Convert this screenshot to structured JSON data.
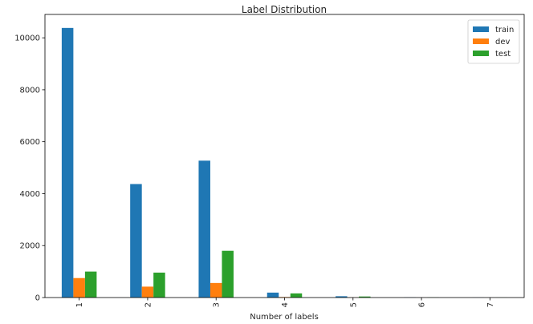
{
  "chart_data": {
    "type": "bar",
    "title": "Label Distribution",
    "xlabel": "Number of labels",
    "ylabel": "",
    "categories": [
      "1",
      "2",
      "3",
      "4",
      "5",
      "6",
      "7"
    ],
    "series": [
      {
        "name": "train",
        "color": "#1f77b4",
        "values": [
          10380,
          4370,
          5270,
          190,
          50,
          8,
          3
        ]
      },
      {
        "name": "dev",
        "color": "#ff7f0e",
        "values": [
          750,
          420,
          560,
          20,
          5,
          1,
          0
        ]
      },
      {
        "name": "test",
        "color": "#2ca02c",
        "values": [
          1000,
          960,
          1800,
          160,
          40,
          6,
          2
        ]
      }
    ],
    "ylim": [
      0,
      10900
    ],
    "yticks": [
      0,
      2000,
      4000,
      6000,
      8000,
      10000
    ],
    "ytick_labels": [
      "0",
      "2000",
      "4000",
      "6000",
      "8000",
      "10000"
    ],
    "xtick_rotation": "vertical",
    "grid": false,
    "legend_position": "top-right"
  }
}
